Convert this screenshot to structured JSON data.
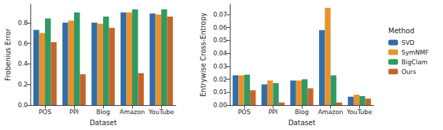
{
  "chart_data": [
    {
      "type": "bar",
      "x_label": "Dataset",
      "y_label": "Frobenius Error",
      "categories": [
        "POS",
        "PPI",
        "Blog",
        "Amazon",
        "YouTube"
      ],
      "series": [
        {
          "name": "SVD",
          "color": "#2f6ea8",
          "values": [
            0.73,
            0.8,
            0.8,
            0.9,
            0.89
          ]
        },
        {
          "name": "SymNMF",
          "color": "#e8912e",
          "values": [
            0.7,
            0.82,
            0.79,
            0.9,
            0.88
          ]
        },
        {
          "name": "BigClam",
          "color": "#2f9a63",
          "values": [
            0.84,
            0.9,
            0.86,
            0.93,
            0.93
          ]
        },
        {
          "name": "Ours",
          "color": "#c4652b",
          "values": [
            0.61,
            0.3,
            0.75,
            0.31,
            0.86
          ]
        }
      ],
      "ylim": [
        0,
        0.98
      ],
      "yticks": [
        {
          "value": 0,
          "label": "0.0"
        },
        {
          "value": 0.2,
          "label": "0.2"
        },
        {
          "value": 0.4,
          "label": "0.4"
        },
        {
          "value": 0.6,
          "label": "0.6"
        },
        {
          "value": 0.8,
          "label": "0.8"
        }
      ],
      "grid": false
    },
    {
      "type": "bar",
      "x_label": "Dataset",
      "y_label": "Entrywise Cross-Entropy",
      "categories": [
        "POS",
        "PPI",
        "Blog",
        "Amazon",
        "YouTube"
      ],
      "series": [
        {
          "name": "SVD",
          "color": "#2f6ea8",
          "values": [
            0.023,
            0.016,
            0.019,
            0.058,
            0.0065
          ]
        },
        {
          "name": "SymNMF",
          "color": "#e8912e",
          "values": [
            0.023,
            0.019,
            0.019,
            0.075,
            0.008
          ]
        },
        {
          "name": "BigClam",
          "color": "#2f9a63",
          "values": [
            0.0235,
            0.017,
            0.02,
            0.023,
            0.007
          ]
        },
        {
          "name": "Ours",
          "color": "#c4652b",
          "values": [
            0.0115,
            0.002,
            0.013,
            0.002,
            0.005
          ]
        }
      ],
      "ylim": [
        0,
        0.078
      ],
      "yticks": [
        {
          "value": 0,
          "label": "0.00"
        },
        {
          "value": 0.01,
          "label": "0.01"
        },
        {
          "value": 0.02,
          "label": "0.02"
        },
        {
          "value": 0.03,
          "label": "0.03"
        },
        {
          "value": 0.04,
          "label": "0.04"
        },
        {
          "value": 0.05,
          "label": "0.05"
        },
        {
          "value": 0.06,
          "label": "0.06"
        },
        {
          "value": 0.07,
          "label": "0.07"
        }
      ],
      "grid": false,
      "legend": "right",
      "annotations": [
        "Method"
      ]
    }
  ]
}
